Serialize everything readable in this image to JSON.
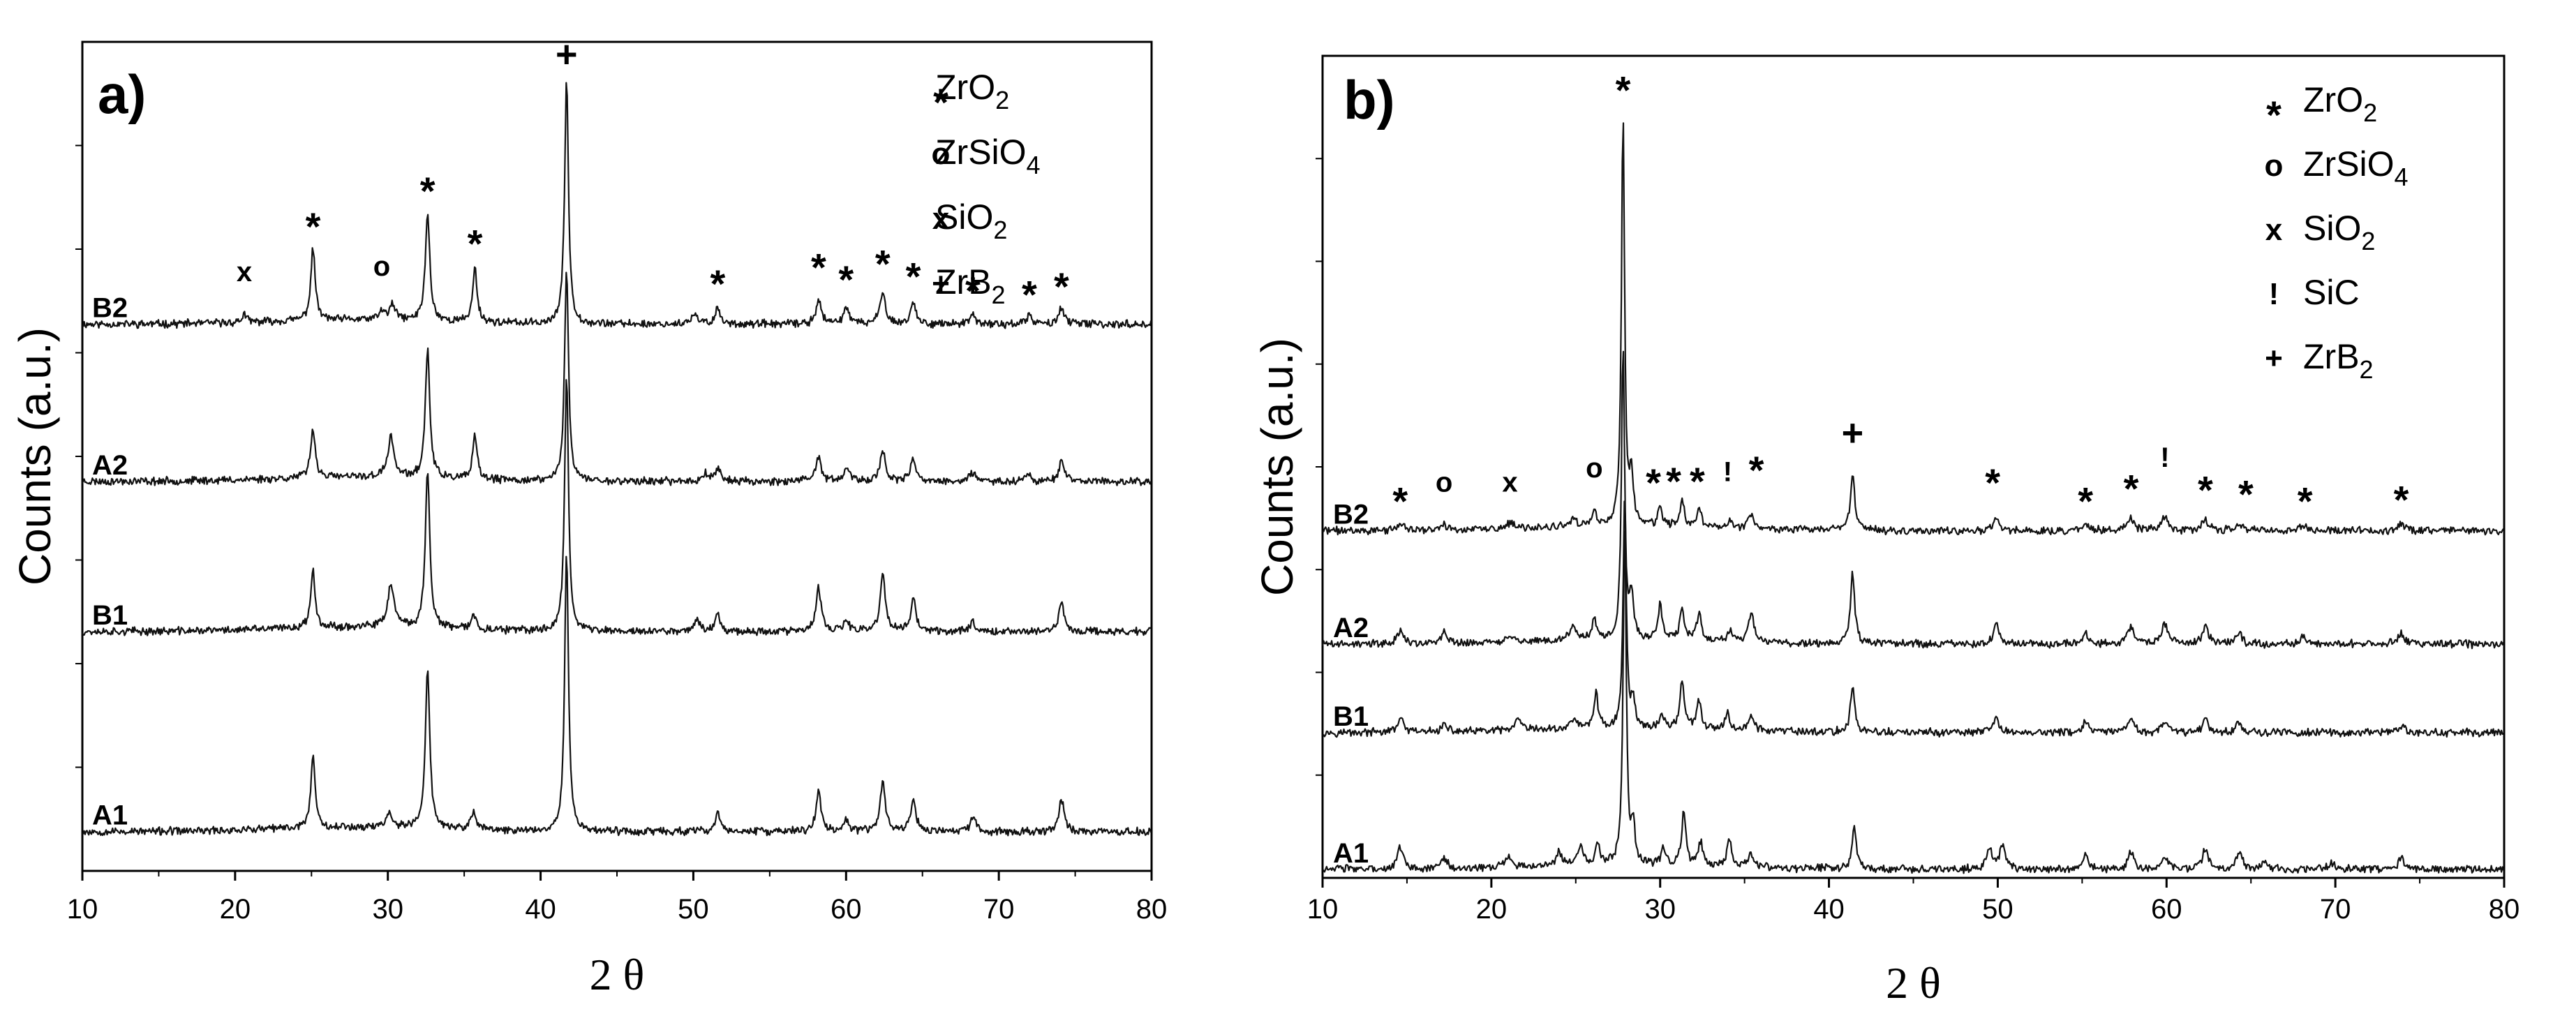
{
  "chart_data": [
    {
      "id": "a",
      "type": "line",
      "panel_label": "a)",
      "xlabel": "2 θ",
      "ylabel": "Counts (a.u.)",
      "xlim": [
        10,
        80
      ],
      "xticks": [
        10,
        20,
        30,
        40,
        50,
        60,
        70,
        80
      ],
      "legend": [
        {
          "symbol": "*",
          "label": "ZrO",
          "sub": "2"
        },
        {
          "symbol": "o",
          "label": "ZrSiO",
          "sub": "4"
        },
        {
          "symbol": "x",
          "label": "SiO",
          "sub": "2"
        },
        {
          "symbol": "+",
          "label": "ZrB",
          "sub": "2"
        }
      ],
      "series": [
        {
          "name": "B2",
          "offset": 0.765,
          "seed": 11,
          "peaks": [
            [
              20.6,
              0.012,
              0.3
            ],
            [
              25.1,
              0.1,
              0.35
            ],
            [
              29.6,
              0.012,
              0.4
            ],
            [
              30.3,
              0.02,
              0.5
            ],
            [
              32.6,
              0.15,
              0.35
            ],
            [
              35.7,
              0.075,
              0.35
            ],
            [
              41.7,
              0.34,
              0.3
            ],
            [
              50.1,
              0.012,
              0.5
            ],
            [
              51.6,
              0.022,
              0.4
            ],
            [
              58.2,
              0.035,
              0.4
            ],
            [
              60.0,
              0.025,
              0.4
            ],
            [
              62.4,
              0.048,
              0.4
            ],
            [
              64.4,
              0.03,
              0.4
            ],
            [
              68.3,
              0.012,
              0.4
            ],
            [
              72.0,
              0.012,
              0.4
            ],
            [
              74.1,
              0.025,
              0.4
            ]
          ]
        },
        {
          "name": "A2",
          "offset": 0.545,
          "seed": 23,
          "peaks": [
            [
              25.1,
              0.07,
              0.35
            ],
            [
              30.2,
              0.055,
              0.5
            ],
            [
              32.6,
              0.18,
              0.35
            ],
            [
              35.7,
              0.06,
              0.35
            ],
            [
              41.7,
              0.3,
              0.3
            ],
            [
              50.8,
              0.012,
              0.4
            ],
            [
              51.6,
              0.02,
              0.4
            ],
            [
              58.2,
              0.035,
              0.4
            ],
            [
              60.0,
              0.02,
              0.4
            ],
            [
              62.4,
              0.045,
              0.4
            ],
            [
              64.4,
              0.03,
              0.4
            ],
            [
              68.3,
              0.012,
              0.4
            ],
            [
              71.9,
              0.012,
              0.4
            ],
            [
              74.1,
              0.03,
              0.4
            ]
          ]
        },
        {
          "name": "B1",
          "offset": 0.335,
          "seed": 37,
          "peaks": [
            [
              25.1,
              0.08,
              0.35
            ],
            [
              30.2,
              0.06,
              0.5
            ],
            [
              32.6,
              0.22,
              0.35
            ],
            [
              35.6,
              0.02,
              0.4
            ],
            [
              41.7,
              0.36,
              0.3
            ],
            [
              50.2,
              0.015,
              0.5
            ],
            [
              51.6,
              0.025,
              0.4
            ],
            [
              58.2,
              0.06,
              0.4
            ],
            [
              60.0,
              0.015,
              0.4
            ],
            [
              62.4,
              0.08,
              0.4
            ],
            [
              64.4,
              0.045,
              0.4
            ],
            [
              68.3,
              0.015,
              0.4
            ],
            [
              74.1,
              0.04,
              0.4
            ]
          ]
        },
        {
          "name": "A1",
          "offset": 0.055,
          "seed": 53,
          "peaks": [
            [
              25.1,
              0.1,
              0.35
            ],
            [
              30.1,
              0.02,
              0.5
            ],
            [
              32.6,
              0.22,
              0.35
            ],
            [
              35.6,
              0.025,
              0.4
            ],
            [
              41.7,
              0.39,
              0.3
            ],
            [
              51.6,
              0.025,
              0.4
            ],
            [
              58.2,
              0.055,
              0.4
            ],
            [
              60.0,
              0.015,
              0.4
            ],
            [
              62.4,
              0.07,
              0.4
            ],
            [
              64.4,
              0.045,
              0.4
            ],
            [
              68.3,
              0.02,
              0.4
            ],
            [
              74.1,
              0.045,
              0.4
            ]
          ]
        }
      ],
      "annotations": [
        {
          "x": 20.6,
          "y": 0.825,
          "text": "x"
        },
        {
          "x": 25.1,
          "y": 0.91,
          "text": "*"
        },
        {
          "x": 29.6,
          "y": 0.833,
          "text": "o"
        },
        {
          "x": 32.6,
          "y": 0.96,
          "text": "*"
        },
        {
          "x": 35.7,
          "y": 0.886,
          "text": "*"
        },
        {
          "x": 41.7,
          "y": 1.125,
          "text": "+"
        },
        {
          "x": 51.6,
          "y": 0.83,
          "text": "*"
        },
        {
          "x": 58.2,
          "y": 0.853,
          "text": "*"
        },
        {
          "x": 60.0,
          "y": 0.836,
          "text": "*"
        },
        {
          "x": 62.4,
          "y": 0.858,
          "text": "*"
        },
        {
          "x": 64.4,
          "y": 0.84,
          "text": "*"
        },
        {
          "x": 68.3,
          "y": 0.82,
          "text": "*"
        },
        {
          "x": 72.0,
          "y": 0.815,
          "text": "*"
        },
        {
          "x": 74.1,
          "y": 0.826,
          "text": "*"
        }
      ]
    },
    {
      "id": "b",
      "type": "line",
      "panel_label": "b)",
      "xlabel": "2 θ",
      "ylabel": "Counts (a.u.)",
      "xlim": [
        10,
        80
      ],
      "xticks": [
        10,
        20,
        30,
        40,
        50,
        60,
        70,
        80
      ],
      "legend": [
        {
          "symbol": "*",
          "label": "ZrO",
          "sub": "2"
        },
        {
          "symbol": "o",
          "label": "ZrSiO",
          "sub": "4"
        },
        {
          "symbol": "x",
          "label": "SiO",
          "sub": "2"
        },
        {
          "symbol": "!",
          "label": "SiC",
          "sub": ""
        },
        {
          "symbol": "+",
          "label": "ZrB",
          "sub": "2"
        }
      ],
      "series": [
        {
          "name": "B2",
          "offset": 0.49,
          "seed": 71,
          "peaks": [
            [
              14.6,
              0.01,
              0.4
            ],
            [
              17.2,
              0.008,
              0.4
            ],
            [
              21.1,
              0.008,
              0.4
            ],
            [
              24.9,
              0.01,
              0.4
            ],
            [
              26.1,
              0.02,
              0.3
            ],
            [
              27.8,
              0.58,
              0.22
            ],
            [
              28.3,
              0.07,
              0.25
            ],
            [
              30.0,
              0.025,
              0.3
            ],
            [
              31.3,
              0.035,
              0.3
            ],
            [
              32.3,
              0.03,
              0.3
            ],
            [
              34.1,
              0.012,
              0.3
            ],
            [
              35.4,
              0.02,
              0.4
            ],
            [
              41.4,
              0.08,
              0.3
            ],
            [
              49.9,
              0.018,
              0.4
            ],
            [
              55.2,
              0.01,
              0.4
            ],
            [
              57.9,
              0.018,
              0.4
            ],
            [
              59.9,
              0.02,
              0.4
            ],
            [
              62.3,
              0.015,
              0.4
            ],
            [
              64.3,
              0.01,
              0.4
            ],
            [
              68.1,
              0.008,
              0.4
            ],
            [
              73.9,
              0.01,
              0.4
            ]
          ]
        },
        {
          "name": "A2",
          "offset": 0.33,
          "seed": 89,
          "peaks": [
            [
              14.6,
              0.02,
              0.4
            ],
            [
              17.2,
              0.015,
              0.4
            ],
            [
              21.0,
              0.01,
              0.4
            ],
            [
              24.8,
              0.02,
              0.4
            ],
            [
              26.1,
              0.03,
              0.3
            ],
            [
              27.8,
              0.42,
              0.22
            ],
            [
              28.3,
              0.06,
              0.25
            ],
            [
              30.0,
              0.05,
              0.3
            ],
            [
              31.3,
              0.045,
              0.3
            ],
            [
              32.3,
              0.04,
              0.3
            ],
            [
              34.1,
              0.015,
              0.3
            ],
            [
              35.4,
              0.04,
              0.4
            ],
            [
              41.4,
              0.1,
              0.3
            ],
            [
              49.9,
              0.03,
              0.4
            ],
            [
              55.2,
              0.015,
              0.4
            ],
            [
              57.9,
              0.025,
              0.4
            ],
            [
              59.9,
              0.03,
              0.4
            ],
            [
              62.3,
              0.025,
              0.4
            ],
            [
              64.3,
              0.015,
              0.4
            ],
            [
              68.1,
              0.01,
              0.4
            ],
            [
              73.9,
              0.015,
              0.4
            ]
          ]
        },
        {
          "name": "B1",
          "offset": 0.205,
          "seed": 97,
          "peaks": [
            [
              14.6,
              0.02,
              0.4
            ],
            [
              17.2,
              0.01,
              0.4
            ],
            [
              21.6,
              0.015,
              0.4
            ],
            [
              24.9,
              0.015,
              0.4
            ],
            [
              26.2,
              0.05,
              0.3
            ],
            [
              27.9,
              0.33,
              0.22
            ],
            [
              28.4,
              0.04,
              0.25
            ],
            [
              30.1,
              0.02,
              0.3
            ],
            [
              31.3,
              0.07,
              0.3
            ],
            [
              32.3,
              0.04,
              0.3
            ],
            [
              34.0,
              0.025,
              0.3
            ],
            [
              35.4,
              0.02,
              0.4
            ],
            [
              41.4,
              0.065,
              0.3
            ],
            [
              49.9,
              0.02,
              0.4
            ],
            [
              55.2,
              0.015,
              0.4
            ],
            [
              57.9,
              0.02,
              0.4
            ],
            [
              59.9,
              0.015,
              0.4
            ],
            [
              62.3,
              0.02,
              0.4
            ],
            [
              64.3,
              0.015,
              0.4
            ],
            [
              73.9,
              0.01,
              0.4
            ]
          ]
        },
        {
          "name": "A1",
          "offset": 0.012,
          "seed": 103,
          "peaks": [
            [
              14.6,
              0.03,
              0.4
            ],
            [
              17.2,
              0.015,
              0.4
            ],
            [
              21.0,
              0.015,
              0.4
            ],
            [
              24.0,
              0.02,
              0.4
            ],
            [
              25.3,
              0.025,
              0.4
            ],
            [
              26.3,
              0.03,
              0.3
            ],
            [
              27.9,
              0.48,
              0.22
            ],
            [
              28.4,
              0.05,
              0.25
            ],
            [
              30.2,
              0.025,
              0.3
            ],
            [
              31.4,
              0.075,
              0.3
            ],
            [
              32.4,
              0.035,
              0.3
            ],
            [
              34.1,
              0.04,
              0.3
            ],
            [
              35.4,
              0.02,
              0.4
            ],
            [
              41.5,
              0.06,
              0.3
            ],
            [
              49.5,
              0.03,
              0.4
            ],
            [
              50.3,
              0.035,
              0.4
            ],
            [
              55.2,
              0.02,
              0.4
            ],
            [
              57.9,
              0.025,
              0.4
            ],
            [
              59.9,
              0.02,
              0.4
            ],
            [
              62.3,
              0.03,
              0.4
            ],
            [
              64.3,
              0.025,
              0.4
            ],
            [
              65.8,
              0.01,
              0.4
            ],
            [
              69.8,
              0.008,
              0.4
            ],
            [
              73.9,
              0.015,
              0.4
            ]
          ]
        }
      ],
      "annotations": [
        {
          "x": 14.6,
          "y": 0.54,
          "text": "*"
        },
        {
          "x": 17.2,
          "y": 0.545,
          "text": "o"
        },
        {
          "x": 21.1,
          "y": 0.545,
          "text": "x"
        },
        {
          "x": 26.1,
          "y": 0.565,
          "text": "o"
        },
        {
          "x": 27.8,
          "y": 1.12,
          "text": "*"
        },
        {
          "x": 29.6,
          "y": 0.566,
          "text": "*"
        },
        {
          "x": 30.8,
          "y": 0.568,
          "text": "*"
        },
        {
          "x": 32.2,
          "y": 0.568,
          "text": "*"
        },
        {
          "x": 34.0,
          "y": 0.56,
          "text": "!"
        },
        {
          "x": 35.7,
          "y": 0.584,
          "text": "*"
        },
        {
          "x": 41.4,
          "y": 0.61,
          "text": "+"
        },
        {
          "x": 49.7,
          "y": 0.566,
          "text": "*"
        },
        {
          "x": 55.2,
          "y": 0.54,
          "text": "*"
        },
        {
          "x": 57.9,
          "y": 0.558,
          "text": "*"
        },
        {
          "x": 59.9,
          "y": 0.58,
          "text": "!"
        },
        {
          "x": 62.3,
          "y": 0.556,
          "text": "*"
        },
        {
          "x": 64.7,
          "y": 0.55,
          "text": "*"
        },
        {
          "x": 68.2,
          "y": 0.54,
          "text": "*"
        },
        {
          "x": 73.9,
          "y": 0.542,
          "text": "*"
        }
      ]
    }
  ]
}
